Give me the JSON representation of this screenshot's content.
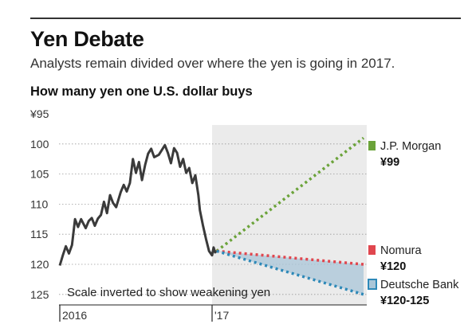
{
  "header": {
    "title": "Yen Debate",
    "subtitle": "Analysts remain divided over where the yen is going in 2017."
  },
  "chart_data": {
    "type": "line",
    "title": "How many yen one U.S. dollar buys",
    "y_inverted": true,
    "ylim": [
      95,
      125
    ],
    "y_ticks": [
      "¥95",
      "100",
      "105",
      "110",
      "115",
      "120",
      "125"
    ],
    "x_ticks": [
      "2016",
      "'17"
    ],
    "annotation": "Scale inverted to show weakening yen",
    "shaded_region": "forecast period 2017",
    "series": [
      {
        "values": [
          [
            2016.0,
            120.2
          ],
          [
            2016.02,
            118.5
          ],
          [
            2016.04,
            117.0
          ],
          [
            2016.06,
            118.2
          ],
          [
            2016.08,
            116.8
          ],
          [
            2016.1,
            112.5
          ],
          [
            2016.12,
            113.8
          ],
          [
            2016.14,
            112.5
          ],
          [
            2016.17,
            114.0
          ],
          [
            2016.19,
            112.8
          ],
          [
            2016.21,
            112.3
          ],
          [
            2016.23,
            113.6
          ],
          [
            2016.25,
            112.4
          ],
          [
            2016.27,
            111.8
          ],
          [
            2016.29,
            109.6
          ],
          [
            2016.31,
            111.5
          ],
          [
            2016.33,
            108.5
          ],
          [
            2016.35,
            109.8
          ],
          [
            2016.37,
            110.5
          ],
          [
            2016.4,
            108.0
          ],
          [
            2016.42,
            106.8
          ],
          [
            2016.44,
            107.9
          ],
          [
            2016.46,
            106.5
          ],
          [
            2016.48,
            102.5
          ],
          [
            2016.5,
            104.8
          ],
          [
            2016.52,
            103.0
          ],
          [
            2016.54,
            106.0
          ],
          [
            2016.56,
            103.5
          ],
          [
            2016.58,
            101.6
          ],
          [
            2016.6,
            100.8
          ],
          [
            2016.62,
            102.2
          ],
          [
            2016.65,
            101.8
          ],
          [
            2016.67,
            101.0
          ],
          [
            2016.69,
            100.2
          ],
          [
            2016.71,
            101.5
          ],
          [
            2016.73,
            103.2
          ],
          [
            2016.75,
            100.7
          ],
          [
            2016.77,
            101.5
          ],
          [
            2016.79,
            103.8
          ],
          [
            2016.81,
            102.5
          ],
          [
            2016.83,
            104.8
          ],
          [
            2016.85,
            104.0
          ],
          [
            2016.87,
            106.5
          ],
          [
            2016.89,
            105.2
          ],
          [
            2016.91,
            108.5
          ],
          [
            2016.92,
            111.0
          ],
          [
            2016.94,
            113.5
          ],
          [
            2016.96,
            115.8
          ],
          [
            2016.98,
            117.8
          ],
          [
            2017.0,
            118.5
          ],
          [
            2017.01,
            117.2
          ],
          [
            2017.02,
            118.0
          ],
          [
            2017.03,
            117.8
          ]
        ]
      }
    ],
    "forecasts": [
      {
        "name": "J.P. Morgan",
        "value_label": "¥99",
        "target": 99,
        "color": "#6ba33a"
      },
      {
        "name": "Nomura",
        "value_label": "¥120",
        "target": 120,
        "color": "#e0464e"
      },
      {
        "name": "Deutsche Bank",
        "value_label": "¥120-125",
        "target": [
          120,
          125
        ],
        "color": "#2e89b8"
      }
    ]
  }
}
